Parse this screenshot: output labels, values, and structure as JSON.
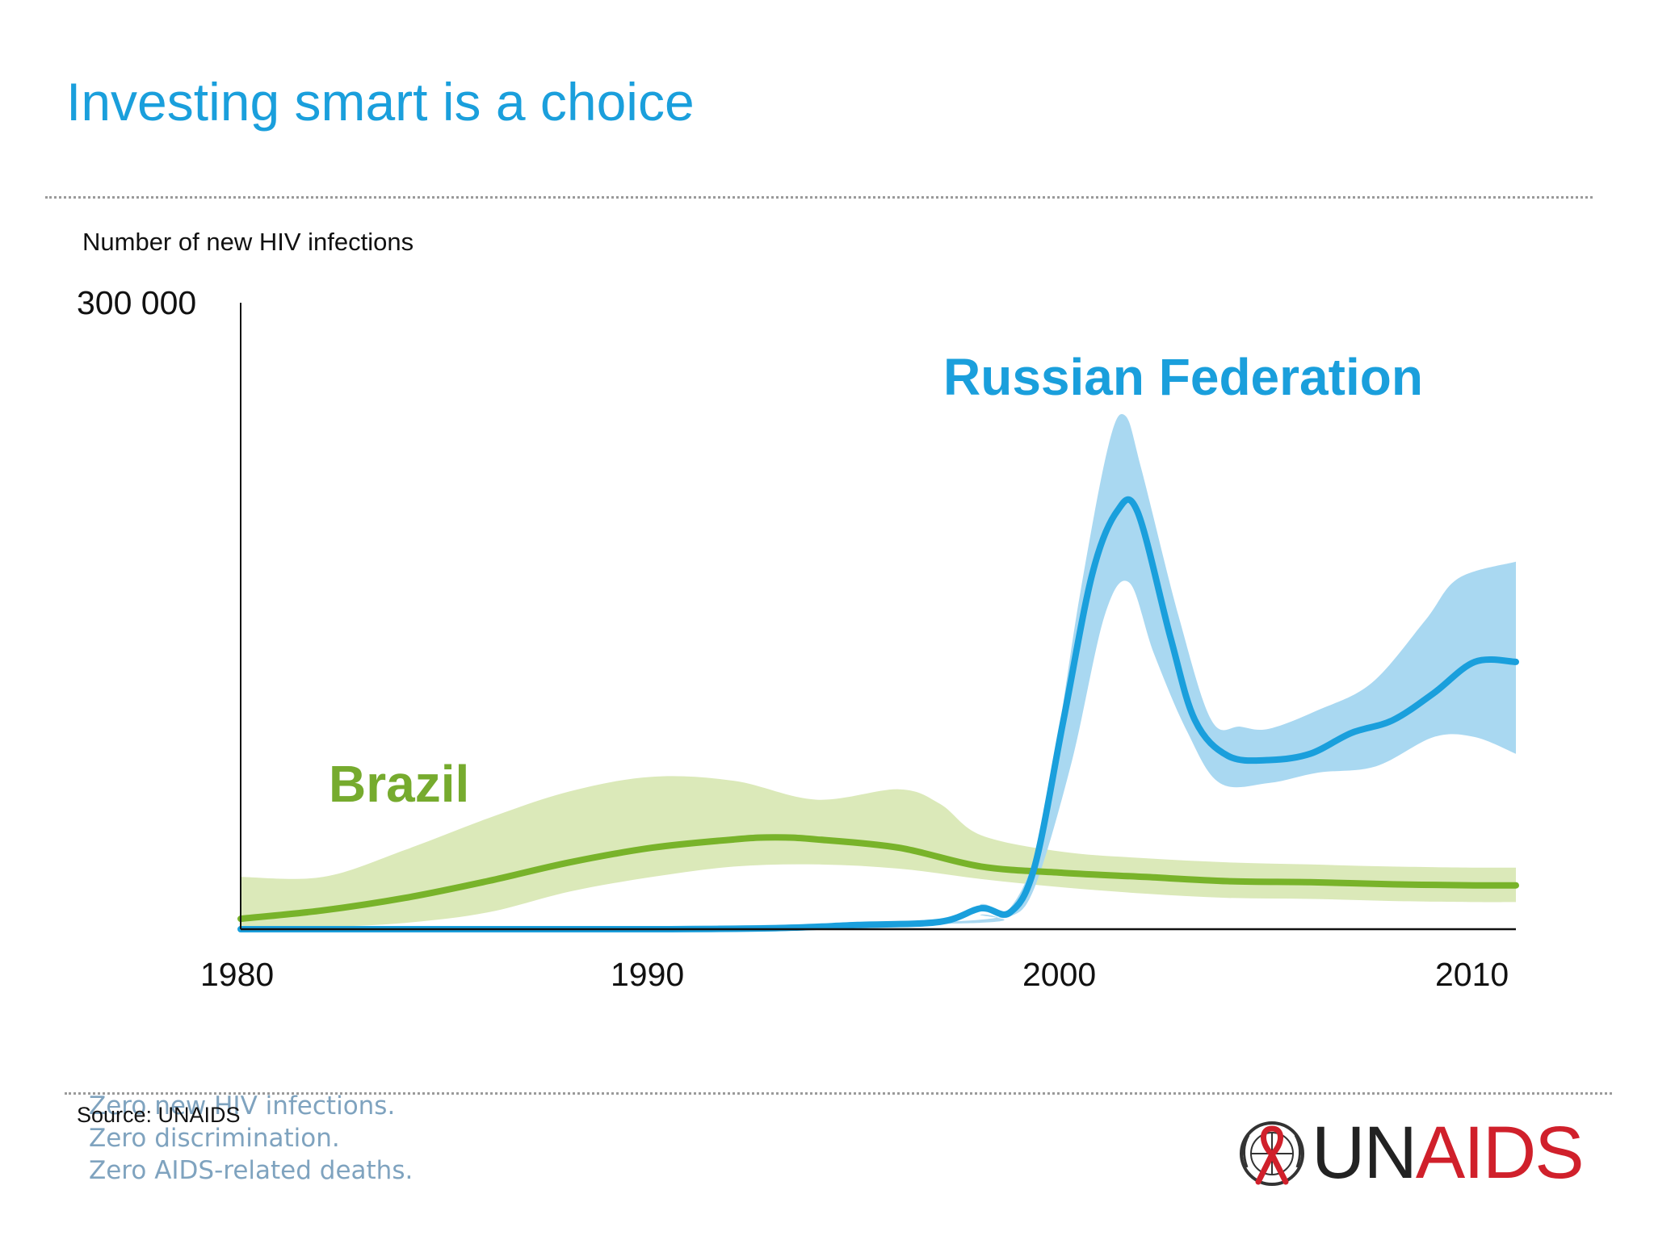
{
  "slide": {
    "title": "Investing smart is a choice",
    "source": "Source: UNAIDS",
    "tagline": [
      "Zero new HIV infections.",
      "Zero discrimination.",
      "Zero AIDS-related deaths."
    ],
    "logo": {
      "text_un": "UN",
      "text_aids": "AIDS",
      "icon": "un-emblem-ribbon-icon"
    }
  },
  "colors": {
    "title": "#1a9fdc",
    "russia_line": "#1a9fdc",
    "russia_band": "#a9d8f1",
    "brazil_line": "#78b32a",
    "brazil_band": "#dbe9b9",
    "logo_red": "#d0202b"
  },
  "chart_data": {
    "type": "line",
    "ylabel": "Number of new HIV infections",
    "ylim": [
      0,
      300000
    ],
    "xlim": [
      1980,
      2011
    ],
    "y_tick_labels": [
      "300 000"
    ],
    "x_tick_labels": [
      "1980",
      "1990",
      "2000",
      "2010"
    ],
    "x_ticks": [
      1980,
      1990,
      2000,
      2010
    ],
    "grid": false,
    "series": [
      {
        "name": "Russian Federation",
        "color": "#1a9fdc",
        "band_color": "#a9d8f1",
        "points": [
          [
            1980,
            0
          ],
          [
            1985,
            0
          ],
          [
            1990,
            0
          ],
          [
            1993,
            500
          ],
          [
            1995,
            2000
          ],
          [
            1997,
            3500
          ],
          [
            1998,
            10000
          ],
          [
            1998.7,
            8000
          ],
          [
            1999.3,
            30000
          ],
          [
            2000,
            100000
          ],
          [
            2000.7,
            170000
          ],
          [
            2001.3,
            200000
          ],
          [
            2001.8,
            200000
          ],
          [
            2002.6,
            140000
          ],
          [
            2003.2,
            100000
          ],
          [
            2004,
            83000
          ],
          [
            2005,
            81000
          ],
          [
            2006,
            84000
          ],
          [
            2007,
            94000
          ],
          [
            2008,
            100000
          ],
          [
            2009,
            113000
          ],
          [
            2010,
            128000
          ],
          [
            2011,
            128000
          ]
        ],
        "upper": [
          [
            1980,
            0
          ],
          [
            1997,
            3500
          ],
          [
            1998,
            12000
          ],
          [
            1998.7,
            10000
          ],
          [
            1999.5,
            50000
          ],
          [
            2000.4,
            160000
          ],
          [
            2001.1,
            232000
          ],
          [
            2001.5,
            246000
          ],
          [
            2001.9,
            220000
          ],
          [
            2002.8,
            150000
          ],
          [
            2003.6,
            100000
          ],
          [
            2004.3,
            97000
          ],
          [
            2005,
            96000
          ],
          [
            2006.2,
            105000
          ],
          [
            2007.5,
            118000
          ],
          [
            2008.8,
            148000
          ],
          [
            2009.6,
            168000
          ],
          [
            2011,
            176000
          ]
        ],
        "lower": [
          [
            1980,
            0
          ],
          [
            1997,
            2500
          ],
          [
            1998,
            7000
          ],
          [
            1998.7,
            6000
          ],
          [
            1999.3,
            20000
          ],
          [
            2000.2,
            80000
          ],
          [
            2001,
            150000
          ],
          [
            2001.6,
            166000
          ],
          [
            2002.2,
            132000
          ],
          [
            2003,
            95000
          ],
          [
            2003.8,
            70000
          ],
          [
            2005,
            70000
          ],
          [
            2006.2,
            75000
          ],
          [
            2007.6,
            78000
          ],
          [
            2009,
            92000
          ],
          [
            2010,
            92000
          ],
          [
            2011,
            84000
          ]
        ]
      },
      {
        "name": "Brazil",
        "color": "#78b32a",
        "band_color": "#dbe9b9",
        "points": [
          [
            1980,
            5000
          ],
          [
            1982,
            9000
          ],
          [
            1984,
            15000
          ],
          [
            1986,
            23000
          ],
          [
            1988,
            32000
          ],
          [
            1990,
            39000
          ],
          [
            1992,
            43000
          ],
          [
            1993,
            44000
          ],
          [
            1994,
            43000
          ],
          [
            1996,
            39000
          ],
          [
            1998,
            30000
          ],
          [
            2000,
            27000
          ],
          [
            2002,
            25000
          ],
          [
            2004,
            23000
          ],
          [
            2006,
            22500
          ],
          [
            2008,
            21500
          ],
          [
            2010,
            21000
          ],
          [
            2011,
            21000
          ]
        ],
        "upper": [
          [
            1980,
            25000
          ],
          [
            1982,
            25000
          ],
          [
            1984,
            38000
          ],
          [
            1986,
            53000
          ],
          [
            1988,
            66000
          ],
          [
            1990,
            73000
          ],
          [
            1992,
            71000
          ],
          [
            1994,
            62000
          ],
          [
            1996,
            67000
          ],
          [
            1997,
            60000
          ],
          [
            1998,
            45000
          ],
          [
            2000,
            37000
          ],
          [
            2002,
            34000
          ],
          [
            2004,
            32000
          ],
          [
            2006,
            31000
          ],
          [
            2008,
            30000
          ],
          [
            2010,
            29500
          ],
          [
            2011,
            29500
          ]
        ],
        "lower": [
          [
            1980,
            0
          ],
          [
            1982,
            1000
          ],
          [
            1984,
            3000
          ],
          [
            1986,
            8000
          ],
          [
            1988,
            18000
          ],
          [
            1990,
            25000
          ],
          [
            1992,
            30000
          ],
          [
            1994,
            31000
          ],
          [
            1996,
            29000
          ],
          [
            1998,
            24000
          ],
          [
            2000,
            20000
          ],
          [
            2002,
            17000
          ],
          [
            2004,
            15000
          ],
          [
            2006,
            14500
          ],
          [
            2008,
            13500
          ],
          [
            2010,
            13000
          ],
          [
            2011,
            13000
          ]
        ]
      }
    ]
  }
}
